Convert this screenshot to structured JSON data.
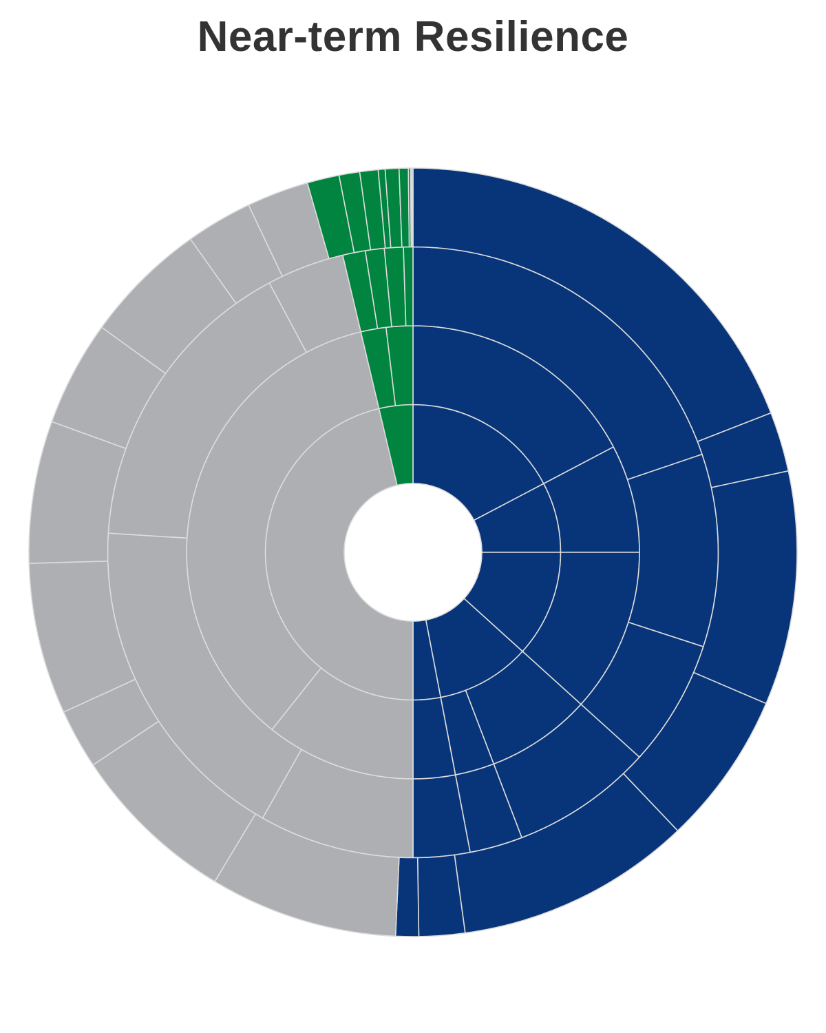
{
  "chart_data": {
    "type": "sunburst",
    "title": "Near-term Resilience",
    "colors": {
      "blue": "#083579",
      "gray": "#aeafb2",
      "green": "#00843f",
      "border": "#dcdcdc",
      "title": "#333333"
    },
    "segment_order": "clockwise from top",
    "rings": [
      [
        {
          "value": 17.3,
          "color": "blue"
        },
        {
          "value": 7.7,
          "color": "blue"
        },
        {
          "value": 11.7,
          "color": "blue"
        },
        {
          "value": 10.3,
          "color": "blue"
        },
        {
          "value": 3.0,
          "color": "blue"
        },
        {
          "value": 46.3,
          "color": "gray"
        },
        {
          "value": 3.7,
          "color": "green"
        }
      ],
      [
        {
          "value": 17.3,
          "color": "blue"
        },
        {
          "value": 7.7,
          "color": "blue"
        },
        {
          "value": 11.7,
          "color": "blue"
        },
        {
          "value": 7.5,
          "color": "blue"
        },
        {
          "value": 2.8,
          "color": "blue"
        },
        {
          "value": 3.0,
          "color": "blue"
        },
        {
          "value": 10.7,
          "color": "gray"
        },
        {
          "value": 35.6,
          "color": "gray"
        },
        {
          "value": 1.8,
          "color": "green"
        },
        {
          "value": 1.9,
          "color": "green"
        }
      ],
      [
        {
          "value": 19.8,
          "color": "blue"
        },
        {
          "value": 10.2,
          "color": "blue"
        },
        {
          "value": 6.7,
          "color": "blue"
        },
        {
          "value": 7.5,
          "color": "blue"
        },
        {
          "value": 2.8,
          "color": "blue"
        },
        {
          "value": 3.0,
          "color": "blue"
        },
        {
          "value": 8.2,
          "color": "gray"
        },
        {
          "value": 17.8,
          "color": "gray"
        },
        {
          "value": 16.2,
          "color": "gray"
        },
        {
          "value": 4.1,
          "color": "gray"
        },
        {
          "value": 1.2,
          "color": "green"
        },
        {
          "value": 1.0,
          "color": "green"
        },
        {
          "value": 1.0,
          "color": "green"
        },
        {
          "value": 0.5,
          "color": "green"
        }
      ],
      [
        {
          "value": 19.8,
          "color": "blue"
        },
        {
          "value": 2.6,
          "color": "blue"
        },
        {
          "value": 10.2,
          "color": "blue"
        },
        {
          "value": 6.7,
          "color": "blue"
        },
        {
          "value": 10.3,
          "color": "blue"
        },
        {
          "value": 2.0,
          "color": "blue"
        },
        {
          "value": 1.0,
          "color": "blue"
        },
        {
          "value": 8.2,
          "color": "gray"
        },
        {
          "value": 7.3,
          "color": "gray"
        },
        {
          "value": 2.6,
          "color": "gray"
        },
        {
          "value": 6.6,
          "color": "gray"
        },
        {
          "value": 6.2,
          "color": "gray"
        },
        {
          "value": 4.6,
          "color": "gray"
        },
        {
          "value": 5.4,
          "color": "gray"
        },
        {
          "value": 2.9,
          "color": "gray"
        },
        {
          "value": 2.7,
          "color": "gray"
        },
        {
          "value": 1.4,
          "color": "green"
        },
        {
          "value": 0.9,
          "color": "green"
        },
        {
          "value": 0.8,
          "color": "green"
        },
        {
          "value": 0.3,
          "color": "green"
        },
        {
          "value": 0.6,
          "color": "green"
        },
        {
          "value": 0.4,
          "color": "green"
        },
        {
          "value": 0.1,
          "color": "green"
        },
        {
          "value": 0.05,
          "color": "green"
        },
        {
          "value": 0.05,
          "color": "green"
        }
      ]
    ]
  }
}
